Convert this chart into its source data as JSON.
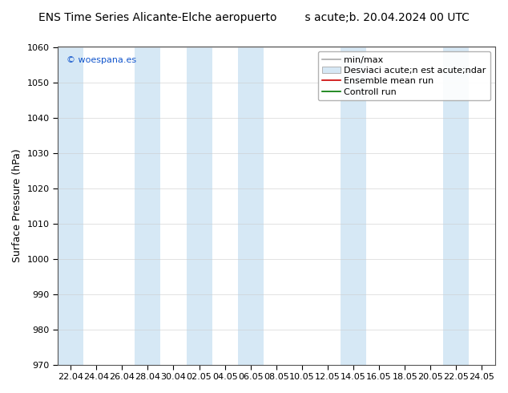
{
  "title_left": "ENS Time Series Alicante-Elche aeropuerto",
  "title_right": "s acute;b. 20.04.2024 00 UTC",
  "ylabel": "Surface Pressure (hPa)",
  "ylim": [
    970,
    1060
  ],
  "yticks": [
    970,
    980,
    990,
    1000,
    1010,
    1020,
    1030,
    1040,
    1050,
    1060
  ],
  "xtick_labels": [
    "22.04",
    "24.04",
    "26.04",
    "28.04",
    "30.04",
    "02.05",
    "04.05",
    "06.05",
    "08.05",
    "10.05",
    "12.05",
    "14.05",
    "16.05",
    "18.05",
    "20.05",
    "22.05",
    "24.05"
  ],
  "fig_bg_color": "#ffffff",
  "plot_bg_color": "#ffffff",
  "stripe_color": "#d6e8f5",
  "stripe_indices": [
    0,
    3,
    5,
    7,
    11,
    15
  ],
  "watermark": "© woespana.es",
  "watermark_color": "#1155cc",
  "legend_minmax_color": "#aaaaaa",
  "legend_std_color": "#d6e8f5",
  "legend_ens_color": "#cc0000",
  "legend_ctrl_color": "#007700",
  "legend_label_minmax": "min/max",
  "legend_label_std": "Desviaci acute;n est acute;ndar",
  "legend_label_ens": "Ensemble mean run",
  "legend_label_ctrl": "Controll run",
  "title_fontsize": 10,
  "label_fontsize": 9,
  "tick_fontsize": 8,
  "legend_fontsize": 8
}
